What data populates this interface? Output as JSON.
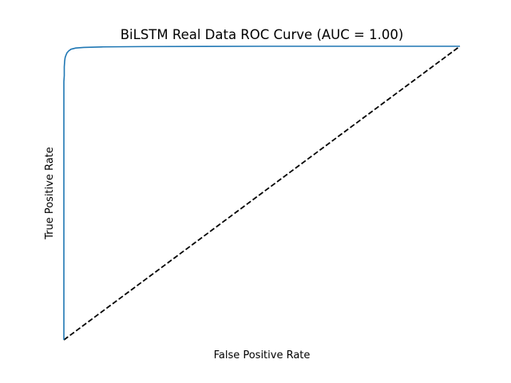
{
  "chart_data": {
    "type": "line",
    "title": "BiLSTM Real Data ROC Curve (AUC = 1.00)",
    "xlabel": "False Positive Rate",
    "ylabel": "True Positive Rate",
    "xlim": [
      0,
      1
    ],
    "ylim": [
      0,
      1
    ],
    "grid": false,
    "axes_visible": false,
    "series": [
      {
        "color": "#1f77b4",
        "line_style": "solid",
        "x": [
          0.0,
          0.0,
          0.0,
          0.0,
          0.001,
          0.001,
          0.002,
          0.003,
          0.004,
          0.006,
          0.008,
          0.012,
          0.018,
          0.03,
          0.05,
          0.1,
          0.2,
          0.35,
          0.5,
          0.7,
          0.85,
          1.0
        ],
        "y": [
          0.0,
          0.4,
          0.8,
          0.88,
          0.9,
          0.93,
          0.95,
          0.96,
          0.965,
          0.972,
          0.978,
          0.984,
          0.99,
          0.994,
          0.996,
          0.998,
          0.999,
          0.9995,
          1.0,
          1.0,
          1.0,
          1.0
        ]
      },
      {
        "color": "#000000",
        "line_style": "dashed",
        "x": [
          0,
          1
        ],
        "y": [
          0,
          1
        ]
      }
    ]
  }
}
